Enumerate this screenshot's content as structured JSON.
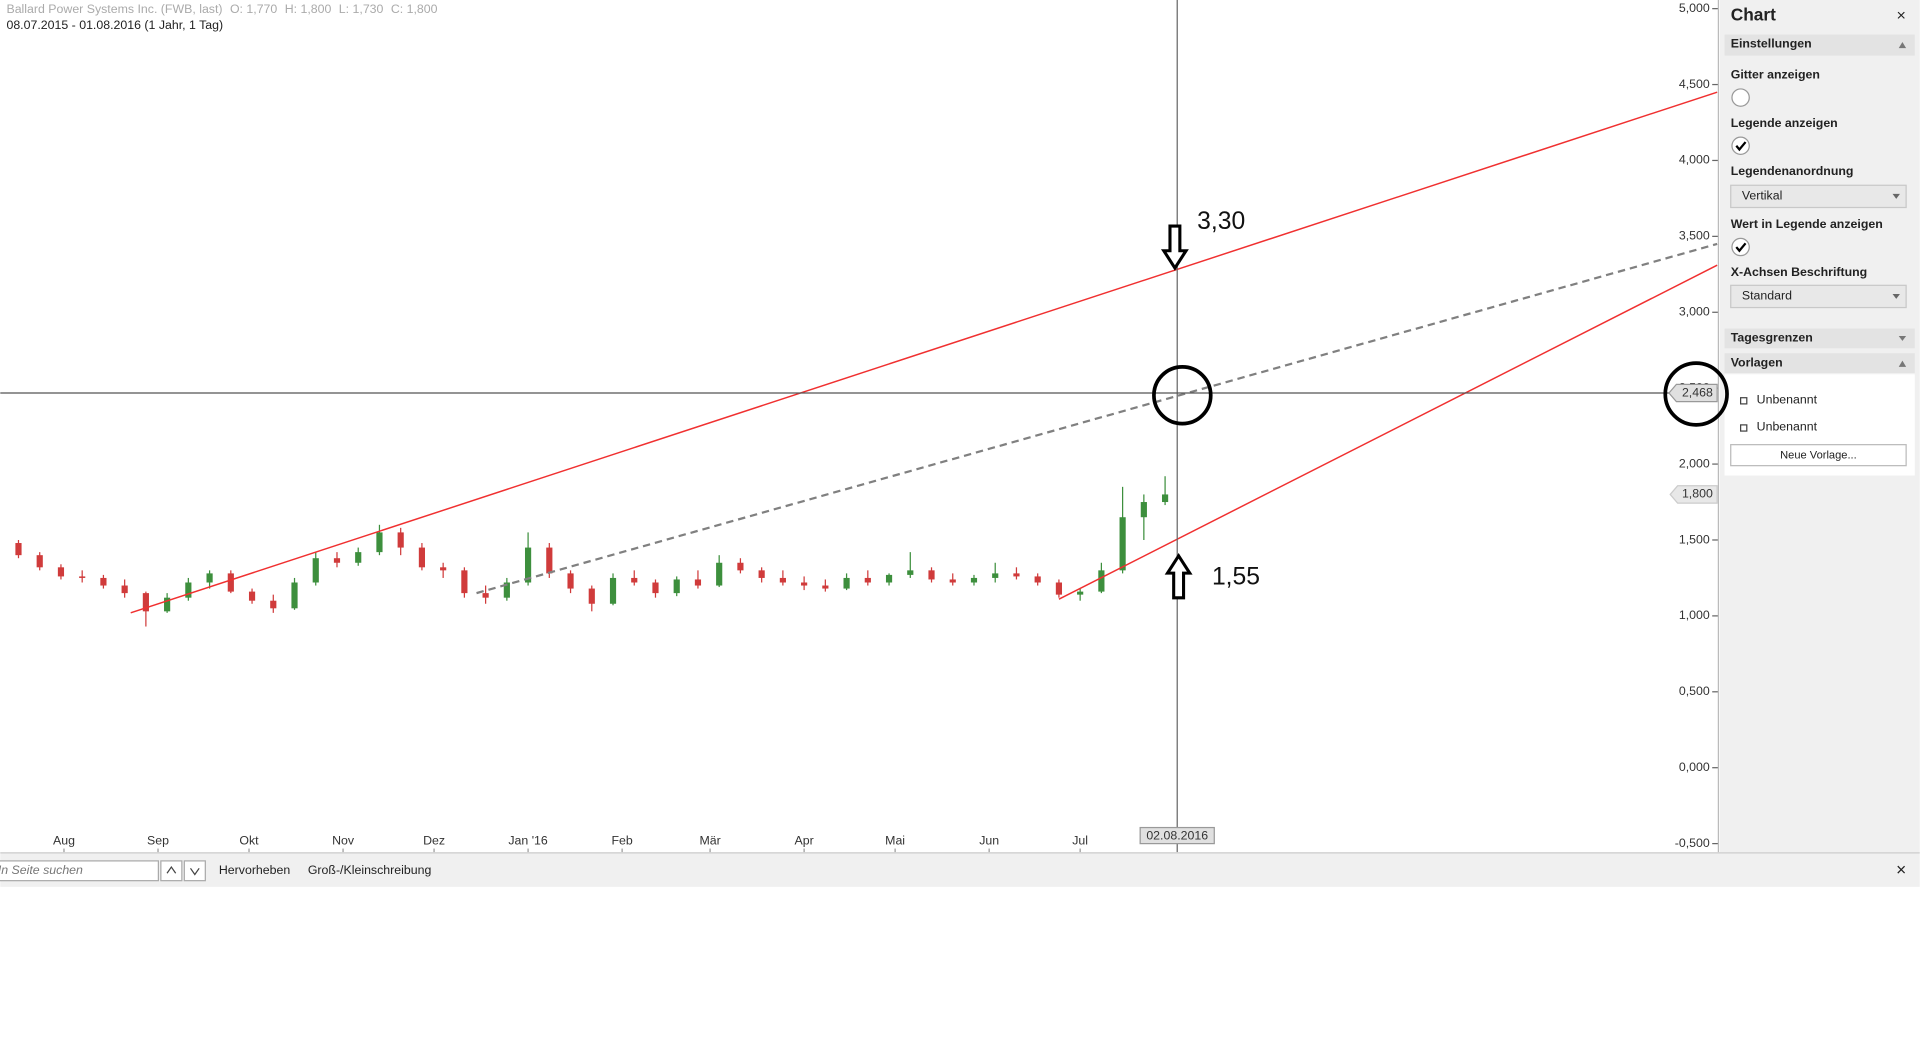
{
  "chart_data": {
    "type": "candlestick",
    "title": "Ballard Power Systems Inc. (FWB, last)",
    "quote": [
      "O: 1,770",
      "H: 1,800",
      "L: 1,730",
      "C: 1,800"
    ],
    "subtitle": "08.07.2015 - 01.08.2016 (1 Jahr, 1 Tag)",
    "up_color": "#3d8f3d",
    "down_color": "#d03b3b",
    "grid": false,
    "xlim": [
      "2015-07-11",
      "2017-01-27"
    ],
    "xticks": [
      {
        "value": "2015-08-01",
        "label": "Aug"
      },
      {
        "value": "2015-09-01",
        "label": "Sep"
      },
      {
        "value": "2015-10-01",
        "label": "Okt"
      },
      {
        "value": "2015-11-01",
        "label": "Nov"
      },
      {
        "value": "2015-12-01",
        "label": "Dez"
      },
      {
        "value": "2016-01-01",
        "label": "Jan '16"
      },
      {
        "value": "2016-02-01",
        "label": "Feb"
      },
      {
        "value": "2016-03-01",
        "label": "Mär"
      },
      {
        "value": "2016-04-01",
        "label": "Apr"
      },
      {
        "value": "2016-05-01",
        "label": "Mai"
      },
      {
        "value": "2016-06-01",
        "label": "Jun"
      },
      {
        "value": "2016-07-01",
        "label": "Jul"
      }
    ],
    "ylim": [
      -0.5,
      5
    ],
    "yticks": [
      {
        "value": -0.5,
        "label": "-0,500"
      },
      {
        "value": 0,
        "label": "0,000"
      },
      {
        "value": 0.5,
        "label": "0,500"
      },
      {
        "value": 1,
        "label": "1,000"
      },
      {
        "value": 1.5,
        "label": "1,500"
      },
      {
        "value": 2,
        "label": "2,000"
      },
      {
        "value": 2.5,
        "label": "2,500"
      },
      {
        "value": 3,
        "label": "3,000"
      },
      {
        "value": 3.5,
        "label": "3,500"
      },
      {
        "value": 4,
        "label": "4,000"
      },
      {
        "value": 4.5,
        "label": "4,500"
      },
      {
        "value": 5,
        "label": "5,000"
      }
    ],
    "x": [
      "2015-07-17",
      "2015-07-24",
      "2015-07-31",
      "2015-08-07",
      "2015-08-14",
      "2015-08-21",
      "2015-08-28",
      "2015-09-04",
      "2015-09-11",
      "2015-09-18",
      "2015-09-25",
      "2015-10-02",
      "2015-10-09",
      "2015-10-16",
      "2015-10-23",
      "2015-10-30",
      "2015-11-06",
      "2015-11-13",
      "2015-11-20",
      "2015-11-27",
      "2015-12-04",
      "2015-12-11",
      "2015-12-18",
      "2015-12-25",
      "2016-01-01",
      "2016-01-08",
      "2016-01-15",
      "2016-01-22",
      "2016-01-29",
      "2016-02-05",
      "2016-02-12",
      "2016-02-19",
      "2016-02-26",
      "2016-03-04",
      "2016-03-11",
      "2016-03-18",
      "2016-03-25",
      "2016-04-01",
      "2016-04-08",
      "2016-04-15",
      "2016-04-22",
      "2016-04-29",
      "2016-05-06",
      "2016-05-13",
      "2016-05-20",
      "2016-05-27",
      "2016-06-03",
      "2016-06-10",
      "2016-06-17",
      "2016-06-24",
      "2016-07-01",
      "2016-07-08",
      "2016-07-15",
      "2016-07-22",
      "2016-07-29"
    ],
    "open": [
      1.48,
      1.4,
      1.32,
      1.26,
      1.25,
      1.2,
      1.15,
      1.03,
      1.12,
      1.22,
      1.28,
      1.16,
      1.1,
      1.05,
      1.22,
      1.38,
      1.35,
      1.42,
      1.55,
      1.45,
      1.32,
      1.3,
      1.15,
      1.12,
      1.22,
      1.45,
      1.28,
      1.18,
      1.08,
      1.25,
      1.22,
      1.15,
      1.24,
      1.2,
      1.35,
      1.3,
      1.25,
      1.22,
      1.2,
      1.18,
      1.25,
      1.22,
      1.27,
      1.3,
      1.24,
      1.22,
      1.25,
      1.28,
      1.26,
      1.22,
      1.14,
      1.16,
      1.3,
      1.65,
      1.75
    ],
    "high": [
      1.5,
      1.42,
      1.34,
      1.3,
      1.27,
      1.24,
      1.16,
      1.15,
      1.25,
      1.3,
      1.3,
      1.18,
      1.14,
      1.25,
      1.42,
      1.42,
      1.45,
      1.6,
      1.58,
      1.48,
      1.35,
      1.32,
      1.2,
      1.25,
      1.55,
      1.48,
      1.3,
      1.2,
      1.28,
      1.3,
      1.24,
      1.26,
      1.3,
      1.4,
      1.38,
      1.32,
      1.3,
      1.26,
      1.24,
      1.28,
      1.3,
      1.28,
      1.42,
      1.32,
      1.28,
      1.27,
      1.35,
      1.32,
      1.28,
      1.24,
      1.18,
      1.35,
      1.85,
      1.8,
      1.92
    ],
    "low": [
      1.38,
      1.3,
      1.24,
      1.22,
      1.18,
      1.12,
      0.93,
      1.02,
      1.1,
      1.18,
      1.15,
      1.08,
      1.02,
      1.04,
      1.2,
      1.32,
      1.33,
      1.4,
      1.4,
      1.3,
      1.25,
      1.12,
      1.08,
      1.1,
      1.2,
      1.25,
      1.15,
      1.03,
      1.07,
      1.2,
      1.12,
      1.13,
      1.18,
      1.19,
      1.28,
      1.22,
      1.2,
      1.17,
      1.16,
      1.17,
      1.2,
      1.2,
      1.25,
      1.22,
      1.2,
      1.2,
      1.22,
      1.24,
      1.2,
      1.12,
      1.1,
      1.15,
      1.28,
      1.5,
      1.73
    ],
    "close": [
      1.4,
      1.32,
      1.26,
      1.25,
      1.2,
      1.15,
      1.03,
      1.12,
      1.22,
      1.28,
      1.16,
      1.1,
      1.05,
      1.22,
      1.38,
      1.35,
      1.42,
      1.55,
      1.45,
      1.32,
      1.3,
      1.15,
      1.12,
      1.22,
      1.45,
      1.28,
      1.18,
      1.08,
      1.25,
      1.22,
      1.15,
      1.24,
      1.2,
      1.35,
      1.3,
      1.25,
      1.22,
      1.2,
      1.18,
      1.25,
      1.22,
      1.27,
      1.3,
      1.24,
      1.22,
      1.25,
      1.28,
      1.26,
      1.22,
      1.14,
      1.16,
      1.3,
      1.65,
      1.75,
      1.8
    ],
    "trendlines": [
      {
        "color": "#f03030",
        "dashed": false,
        "x": [
          "2015-08-23",
          "2017-01-27"
        ],
        "values": [
          1.02,
          4.45
        ]
      },
      {
        "color": "#808080",
        "dashed": true,
        "x": [
          "2015-12-15",
          "2017-01-27"
        ],
        "values": [
          1.15,
          3.45
        ]
      },
      {
        "color": "#f03030",
        "dashed": false,
        "x": [
          "2016-06-24",
          "2017-01-27"
        ],
        "values": [
          1.11,
          3.31
        ]
      }
    ],
    "crosshair": {
      "x": "2016-08-02",
      "x_label": "02.08.2016",
      "y": 2.468,
      "y_label": "2,468"
    },
    "last_price": {
      "value": 1.8,
      "label": "1,800"
    },
    "annotations": [
      "3,30",
      "1,55"
    ]
  },
  "sidebar": {
    "title": "Chart",
    "sections": [
      "Einstellungen",
      "Tagesgrenzen",
      "Vorlagen"
    ],
    "settings": [
      {
        "label": "Gitter anzeigen",
        "checked": false
      },
      {
        "label": "Legende anzeigen",
        "checked": true
      },
      {
        "label": "Legendenanordnung",
        "option": "Vertikal"
      },
      {
        "label": "Wert in Legende anzeigen",
        "checked": true
      },
      {
        "label": "X-Achsen Beschriftung",
        "option": "Standard"
      }
    ],
    "templates": [
      "Unbenannt",
      "Unbenannt"
    ],
    "new_template": "Neue Vorlage..."
  },
  "find_bar": {
    "placeholder": "In Seite suchen",
    "highlight": "Hervorheben",
    "match_case": "Groß-/Kleinschreibung"
  }
}
